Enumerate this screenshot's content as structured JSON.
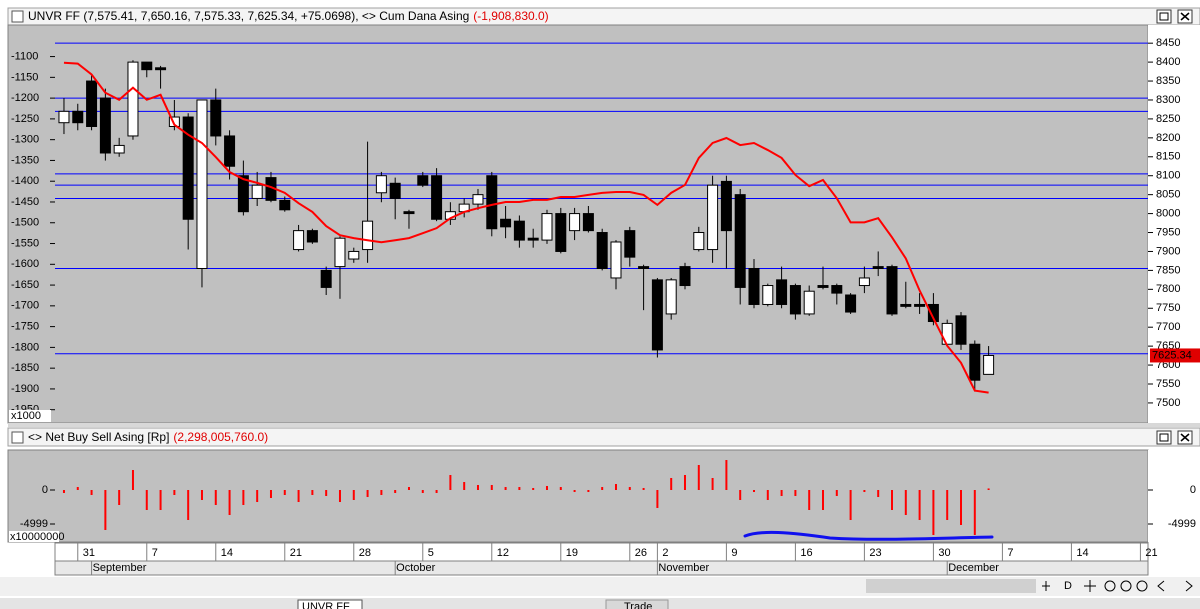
{
  "chart_data": [
    {
      "type": "candlestick",
      "title": "UNVR FF (7,575.41, 7,650.16, 7,575.33, 7,625.34, +75.0698), <> Cum Dana Asing",
      "title_value": "(-1,908,830.0)",
      "ylim": [
        -1982,
        -1024
      ],
      "yticks": [
        -1100,
        -1150,
        -1200,
        -1250,
        -1300,
        -1350,
        -1400,
        -1450,
        -1500,
        -1550,
        -1600,
        -1650,
        -1700,
        -1750,
        -1800,
        -1850,
        -1900,
        -1950
      ],
      "y_unit_label": "x1000",
      "y2lim": [
        7447,
        8498
      ],
      "y2ticks": [
        8450,
        8400,
        8350,
        8300,
        8250,
        8200,
        8150,
        8100,
        8050,
        8000,
        7950,
        7900,
        7850,
        7800,
        7750,
        7700,
        7650,
        7600,
        7550,
        7500
      ],
      "last_price": 7625.34,
      "hlines": {
        "axis": "y2",
        "color": "#0000ff",
        "values": [
          8450,
          8305,
          8270,
          8105,
          8075,
          8040,
          7855,
          7630
        ]
      },
      "series": [
        {
          "type": "candlestick",
          "axis": "y2",
          "up_color": "#ffffff",
          "down_color": "#000000",
          "open": [
            8240,
            8270,
            8350,
            8305,
            8160,
            8205,
            8400,
            8385,
            8230,
            8255,
            7855,
            8300,
            8205,
            8100,
            8040,
            8095,
            8035,
            7905,
            7955,
            7850,
            7860,
            7880,
            7905,
            8055,
            8080,
            8005,
            8100,
            8100,
            7985,
            8005,
            8025,
            8100,
            7985,
            7980,
            7935,
            7930,
            8000,
            7955,
            8000,
            7950,
            7830,
            7955,
            7860,
            7825,
            7735,
            7860,
            7905,
            7905,
            8085,
            8050,
            7855,
            7760,
            7825,
            7810,
            7735,
            7810,
            7810,
            7785,
            7810,
            7860,
            7860,
            7760,
            7760,
            7760,
            7655,
            7730,
            7655,
            7575.41
          ],
          "high": [
            8305,
            8290,
            8365,
            8330,
            8200,
            8405,
            8400,
            8390,
            8300,
            8265,
            8300,
            8330,
            8220,
            8140,
            8110,
            8110,
            8045,
            7970,
            7960,
            7860,
            7940,
            7910,
            8190,
            8110,
            8095,
            8010,
            8110,
            8120,
            8030,
            8040,
            8065,
            8110,
            8020,
            7995,
            7960,
            8010,
            8015,
            8015,
            8020,
            7960,
            7930,
            7965,
            7865,
            7830,
            7830,
            7870,
            7965,
            8100,
            8100,
            8065,
            7880,
            7815,
            7860,
            7815,
            7810,
            7860,
            7815,
            7790,
            7860,
            7900,
            7865,
            7820,
            7790,
            7790,
            7720,
            7740,
            7665,
            7650.16
          ],
          "low": [
            8210,
            8220,
            8220,
            8140,
            8150,
            8195,
            8360,
            8330,
            8220,
            7905,
            7805,
            8180,
            8090,
            7995,
            8020,
            8030,
            8005,
            7900,
            7920,
            7785,
            7775,
            7870,
            7870,
            8030,
            7985,
            7960,
            8070,
            7980,
            7970,
            7990,
            8010,
            7940,
            7935,
            7910,
            7910,
            7920,
            7895,
            7930,
            7950,
            7850,
            7800,
            7860,
            7745,
            7620,
            7720,
            7800,
            7900,
            7870,
            7855,
            7760,
            7750,
            7755,
            7750,
            7720,
            7730,
            7800,
            7760,
            7735,
            7790,
            7835,
            7730,
            7750,
            7735,
            7705,
            7650,
            7640,
            7530,
            7575.33
          ],
          "close": [
            8270,
            8240,
            8230,
            8160,
            8180,
            8400,
            8380,
            8380,
            8255,
            7985,
            8300,
            8205,
            8125,
            8005,
            8075,
            8035,
            8010,
            7955,
            7925,
            7805,
            7935,
            7900,
            7980,
            8100,
            8040,
            8000,
            8075,
            7985,
            8005,
            8025,
            8050,
            7960,
            7965,
            7930,
            7930,
            8000,
            7900,
            8000,
            7955,
            7855,
            7925,
            7885,
            7855,
            7640,
            7825,
            7810,
            7950,
            8075,
            7955,
            7805,
            7760,
            7810,
            7760,
            7735,
            7795,
            7805,
            7790,
            7740,
            7830,
            7855,
            7735,
            7755,
            7755,
            7715,
            7710,
            7655,
            7560,
            7625.34
          ]
        },
        {
          "type": "line",
          "axis": "y",
          "color": "#ff0000",
          "values": [
            -1115,
            -1117,
            -1143,
            -1187,
            -1204,
            -1175,
            -1204,
            -1192,
            -1264,
            -1288,
            -1308,
            -1342,
            -1378,
            -1395,
            -1404,
            -1414,
            -1428,
            -1453,
            -1474,
            -1508,
            -1530,
            -1537,
            -1542,
            -1547,
            -1542,
            -1537,
            -1525,
            -1513,
            -1489,
            -1474,
            -1465,
            -1457,
            -1450,
            -1450,
            -1445,
            -1445,
            -1438,
            -1438,
            -1433,
            -1428,
            -1426,
            -1426,
            -1433,
            -1457,
            -1428,
            -1409,
            -1344,
            -1308,
            -1296,
            -1313,
            -1308,
            -1325,
            -1344,
            -1385,
            -1412,
            -1397,
            -1441,
            -1499,
            -1499,
            -1489,
            -1535,
            -1586,
            -1663,
            -1730,
            -1796,
            -1837,
            -1904,
            -1908.83
          ]
        }
      ]
    },
    {
      "type": "bar",
      "title": "<> Net Buy Sell Asing [Rp]",
      "title_value": "(2,298,005,760.0)",
      "color": "#ff0000",
      "ylim": [
        -7645,
        5881
      ],
      "yticks": [
        0,
        -4999
      ],
      "y_unit_label": "x10000000",
      "values": [
        -440,
        440,
        -735,
        -5880,
        -2205,
        2940,
        -2940,
        -2940,
        -735,
        -4410,
        -1470,
        -2205,
        -3675,
        -2205,
        -1765,
        -1175,
        -735,
        -1765,
        -735,
        -880,
        -1765,
        -1470,
        -1030,
        -735,
        -440,
        440,
        -440,
        -440,
        2205,
        1175,
        735,
        735,
        440,
        440,
        295,
        590,
        440,
        -295,
        -295,
        440,
        880,
        440,
        295,
        -2645,
        1765,
        2205,
        3675,
        1765,
        4410,
        -1470,
        -295,
        -1470,
        -880,
        -880,
        -2940,
        -2940,
        -880,
        -4410,
        -295,
        -1030,
        -2940,
        -3675,
        -4410,
        -6615,
        -4410,
        -5145,
        -6615,
        229.8
      ],
      "xlim": [
        -0.65,
        78.55
      ],
      "xticks": [
        {
          "value": 1,
          "label": "31"
        },
        {
          "value": 6,
          "label": "7"
        },
        {
          "value": 11,
          "label": "14"
        },
        {
          "value": 16,
          "label": "21"
        },
        {
          "value": 21,
          "label": "28"
        },
        {
          "value": 26,
          "label": "5"
        },
        {
          "value": 31,
          "label": "12"
        },
        {
          "value": 36,
          "label": "19"
        },
        {
          "value": 41,
          "label": "26"
        },
        {
          "value": 43,
          "label": "2"
        },
        {
          "value": 48,
          "label": "9"
        },
        {
          "value": 53,
          "label": "16"
        },
        {
          "value": 58,
          "label": "23"
        },
        {
          "value": 63,
          "label": "30"
        },
        {
          "value": 68,
          "label": "7"
        },
        {
          "value": 73,
          "label": "14"
        },
        {
          "value": 78,
          "label": "21"
        }
      ],
      "months": [
        {
          "value": 2,
          "label": "September"
        },
        {
          "value": 24,
          "label": "October"
        },
        {
          "value": 43,
          "label": "November"
        },
        {
          "value": 64,
          "label": "December"
        }
      ]
    }
  ],
  "navigator": {
    "label": "D"
  },
  "toolbar": {
    "symbol": "UNVR FF",
    "button": "Trade"
  }
}
